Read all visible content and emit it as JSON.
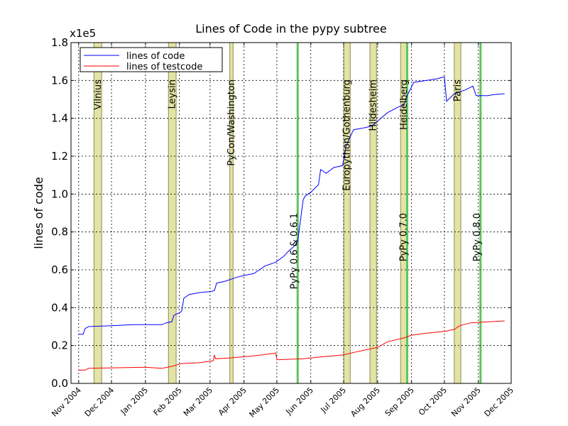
{
  "chart_data": {
    "type": "line",
    "title": "Lines of Code in the pypy subtree",
    "ylabel": "lines of code",
    "y_offset_label": "x1e5",
    "ylim": [
      0,
      180000
    ],
    "yticks": [
      0,
      20000,
      40000,
      60000,
      80000,
      100000,
      120000,
      140000,
      160000,
      180000
    ],
    "ytick_labels": [
      "0.0",
      "0.2",
      "0.4",
      "0.6",
      "0.8",
      "1.0",
      "1.2",
      "1.4",
      "1.6",
      "1.8"
    ],
    "xlim": [
      "2004-10-25",
      "2005-12-01"
    ],
    "xticks": [
      "2004-11-01",
      "2004-12-01",
      "2005-01-01",
      "2005-02-01",
      "2005-03-01",
      "2005-04-01",
      "2005-05-01",
      "2005-06-01",
      "2005-07-01",
      "2005-08-01",
      "2005-09-01",
      "2005-10-01",
      "2005-11-01",
      "2005-12-01"
    ],
    "xtick_labels": [
      "Nov 2004",
      "Dec 2004",
      "Jan 2005",
      "Feb 2005",
      "Mar 2005",
      "Apr 2005",
      "May 2005",
      "Jun 2005",
      "Jul 2005",
      "Aug 2005",
      "Sep 2005",
      "Oct 2005",
      "Nov 2005",
      "Dec 2005"
    ],
    "grid": true,
    "legend_position": "top-left",
    "series": [
      {
        "name": "lines of code",
        "color": "#0000ff",
        "points": [
          [
            "2004-11-01",
            26000
          ],
          [
            "2004-11-05",
            26000
          ],
          [
            "2004-11-07",
            29000
          ],
          [
            "2004-11-10",
            30000
          ],
          [
            "2004-12-01",
            30500
          ],
          [
            "2004-12-20",
            31000
          ],
          [
            "2005-01-01",
            31000
          ],
          [
            "2005-01-16",
            31000
          ],
          [
            "2005-01-20",
            32000
          ],
          [
            "2005-01-25",
            32500
          ],
          [
            "2005-01-27",
            36000
          ],
          [
            "2005-01-31",
            37000
          ],
          [
            "2005-02-03",
            38000
          ],
          [
            "2005-02-05",
            45000
          ],
          [
            "2005-02-10",
            47000
          ],
          [
            "2005-02-20",
            48000
          ],
          [
            "2005-03-01",
            48500
          ],
          [
            "2005-03-05",
            49000
          ],
          [
            "2005-03-07",
            53000
          ],
          [
            "2005-03-15",
            54000
          ],
          [
            "2005-03-25",
            56000
          ],
          [
            "2005-04-01",
            57000
          ],
          [
            "2005-04-10",
            58000
          ],
          [
            "2005-04-20",
            62000
          ],
          [
            "2005-04-30",
            64000
          ],
          [
            "2005-05-07",
            67000
          ],
          [
            "2005-05-12",
            70000
          ],
          [
            "2005-05-16",
            72000
          ],
          [
            "2005-05-20",
            75000
          ],
          [
            "2005-05-25",
            97000
          ],
          [
            "2005-05-27",
            99000
          ],
          [
            "2005-06-01",
            101000
          ],
          [
            "2005-06-08",
            105000
          ],
          [
            "2005-06-10",
            113000
          ],
          [
            "2005-06-15",
            111000
          ],
          [
            "2005-06-22",
            114000
          ],
          [
            "2005-06-30",
            115000
          ],
          [
            "2005-07-03",
            125000
          ],
          [
            "2005-07-06",
            129000
          ],
          [
            "2005-07-10",
            134000
          ],
          [
            "2005-07-20",
            135000
          ],
          [
            "2005-07-27",
            136000
          ],
          [
            "2005-07-31",
            138000
          ],
          [
            "2005-08-10",
            143000
          ],
          [
            "2005-08-20",
            146000
          ],
          [
            "2005-08-25",
            147000
          ],
          [
            "2005-08-28",
            152000
          ],
          [
            "2005-09-03",
            159000
          ],
          [
            "2005-09-15",
            160000
          ],
          [
            "2005-09-25",
            161000
          ],
          [
            "2005-10-01",
            162000
          ],
          [
            "2005-10-03",
            149000
          ],
          [
            "2005-10-10",
            153000
          ],
          [
            "2005-10-20",
            155000
          ],
          [
            "2005-10-27",
            157000
          ],
          [
            "2005-10-30",
            152000
          ],
          [
            "2005-11-10",
            152000
          ],
          [
            "2005-11-15",
            152500
          ],
          [
            "2005-11-25",
            153000
          ]
        ]
      },
      {
        "name": "lines of testcode",
        "color": "#ff0000",
        "points": [
          [
            "2004-11-01",
            7000
          ],
          [
            "2004-11-07",
            7000
          ],
          [
            "2004-11-10",
            8000
          ],
          [
            "2004-12-01",
            8200
          ],
          [
            "2005-01-01",
            8500
          ],
          [
            "2005-01-16",
            8000
          ],
          [
            "2005-01-25",
            9000
          ],
          [
            "2005-02-03",
            10500
          ],
          [
            "2005-02-20",
            11000
          ],
          [
            "2005-03-04",
            12000
          ],
          [
            "2005-03-05",
            15000
          ],
          [
            "2005-03-06",
            13000
          ],
          [
            "2005-03-20",
            13500
          ],
          [
            "2005-04-10",
            14500
          ],
          [
            "2005-04-30",
            16000
          ],
          [
            "2005-05-01",
            12500
          ],
          [
            "2005-05-25",
            13000
          ],
          [
            "2005-06-10",
            14000
          ],
          [
            "2005-06-30",
            15000
          ],
          [
            "2005-07-15",
            17000
          ],
          [
            "2005-08-01",
            19000
          ],
          [
            "2005-08-10",
            22000
          ],
          [
            "2005-08-25",
            24000
          ],
          [
            "2005-09-01",
            25500
          ],
          [
            "2005-09-15",
            26500
          ],
          [
            "2005-10-01",
            27500
          ],
          [
            "2005-10-10",
            28500
          ],
          [
            "2005-10-15",
            30500
          ],
          [
            "2005-10-25",
            32000
          ],
          [
            "2005-11-10",
            32500
          ],
          [
            "2005-11-25",
            33000
          ]
        ]
      }
    ],
    "events": [
      {
        "label": "Vilnius",
        "start": "2004-11-15",
        "end": "2004-11-22"
      },
      {
        "label": "Leysin",
        "start": "2005-01-22",
        "end": "2005-01-29"
      },
      {
        "label": "PyCon/Washington",
        "start": "2005-03-19",
        "end": "2005-03-22"
      },
      {
        "label": "Europython/Gothenburg",
        "start": "2005-07-01",
        "end": "2005-07-07"
      },
      {
        "label": "Hildesheim",
        "start": "2005-07-25",
        "end": "2005-07-31"
      },
      {
        "label": "Heidelberg",
        "start": "2005-08-22",
        "end": "2005-08-28"
      },
      {
        "label": "Paris",
        "start": "2005-10-10",
        "end": "2005-10-16"
      }
    ],
    "releases": [
      {
        "label": "PyPy 0.6 & 0.6.1",
        "date": "2005-05-20"
      },
      {
        "label": "PyPy 0.7.0",
        "date": "2005-08-28"
      },
      {
        "label": "PyPy 0.8.0",
        "date": "2005-11-03"
      }
    ],
    "colors": {
      "event_fill": "#e3e3a7",
      "event_edge": "#8e8e4e",
      "release_line": "#5ec45e"
    }
  }
}
